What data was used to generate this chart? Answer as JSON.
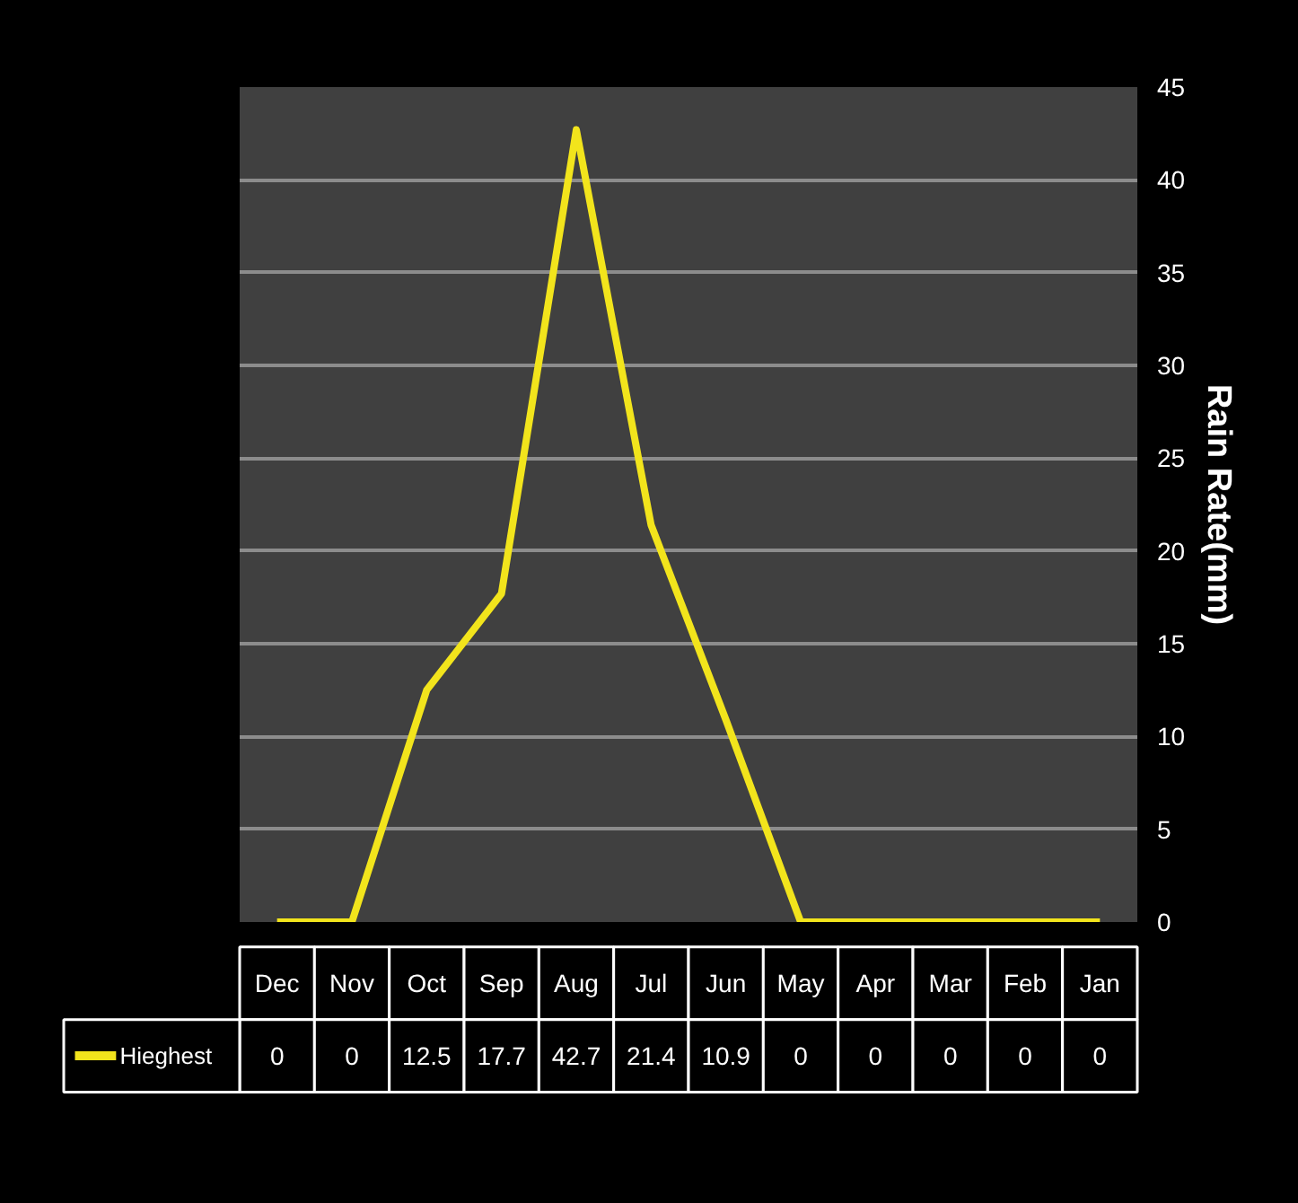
{
  "chart_data": {
    "type": "line",
    "ylabel": "Rain Rate(mm)",
    "categories": [
      "Dec",
      "Nov",
      "Oct",
      "Sep",
      "Aug",
      "Jul",
      "Jun",
      "May",
      "Apr",
      "Mar",
      "Feb",
      "Jan"
    ],
    "series": [
      {
        "name": "Hieghest",
        "color": "#f2e41c",
        "values": [
          0,
          0,
          12.5,
          17.7,
          42.7,
          21.4,
          10.9,
          0,
          0,
          0,
          0,
          0
        ]
      }
    ],
    "ylim": [
      0,
      45
    ],
    "yticks": [
      0,
      5,
      10,
      15,
      20,
      25,
      30,
      35,
      40,
      45
    ],
    "grid": "y",
    "legend": "bottom",
    "data_labels": true,
    "marker": "none",
    "line_style": "solid"
  }
}
